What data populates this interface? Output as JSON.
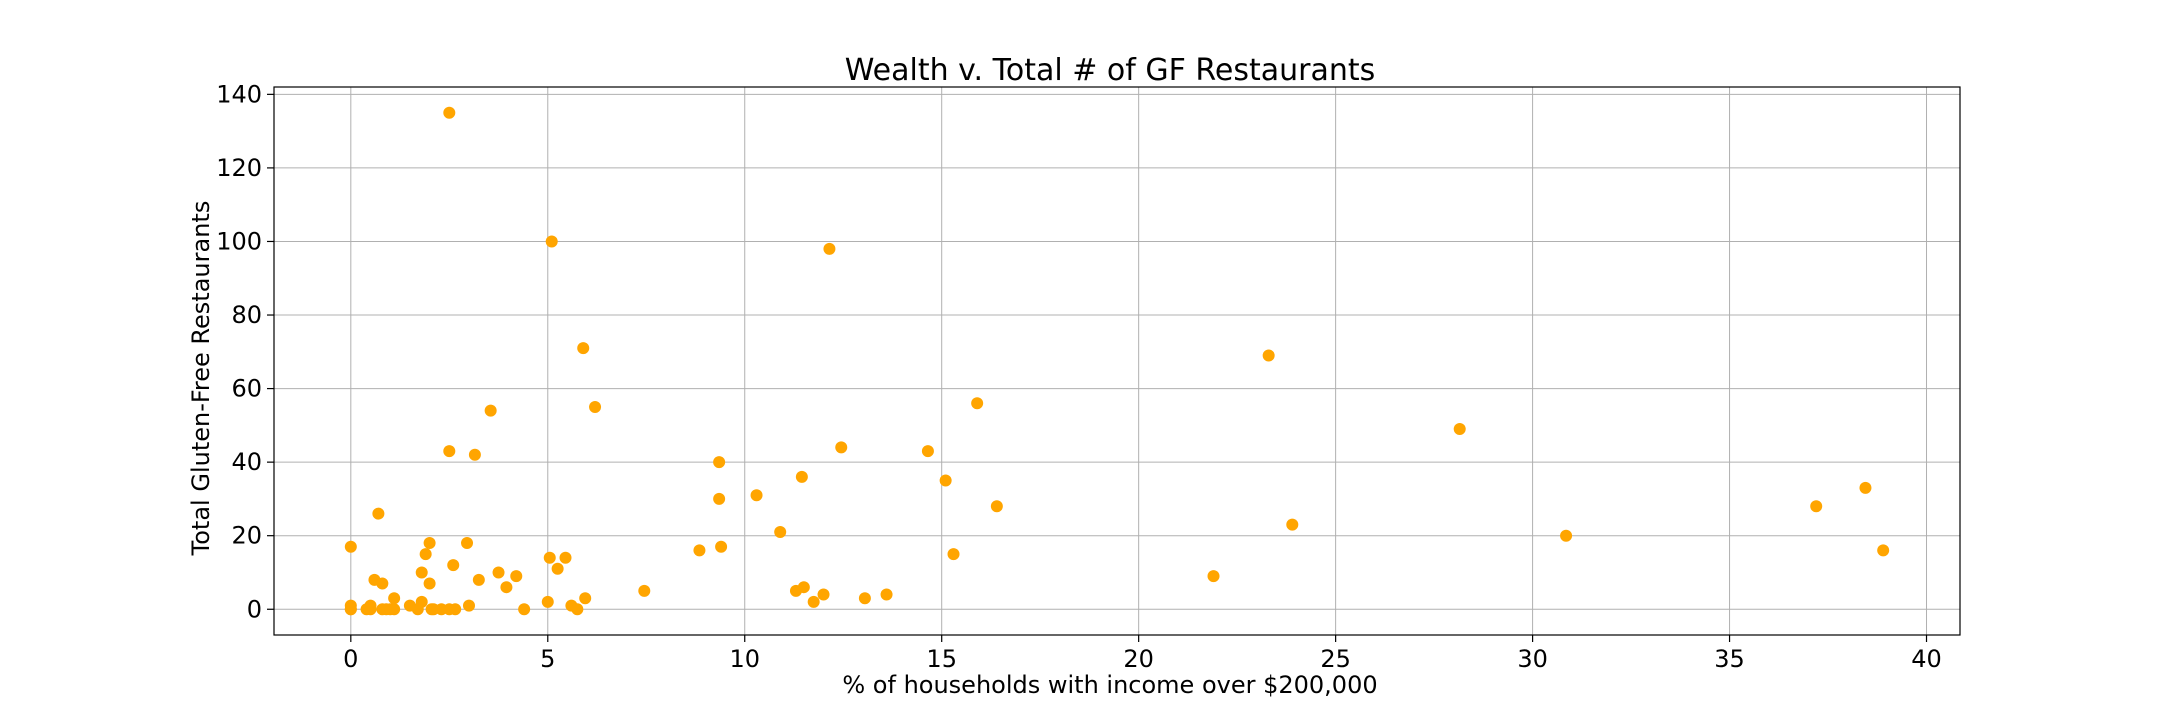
{
  "chart_data": {
    "type": "scatter",
    "title": "Wealth v. Total # of GF Restaurants",
    "xlabel": "% of households with income over $200,000",
    "ylabel": "Total Gluten-Free Restaurants",
    "xlim": [
      -1.95,
      40.85
    ],
    "ylim": [
      -7,
      142
    ],
    "xticks": [
      0,
      5,
      10,
      15,
      20,
      25,
      30,
      35,
      40
    ],
    "yticks": [
      0,
      20,
      40,
      60,
      80,
      100,
      120,
      140
    ],
    "grid": true,
    "marker_color": "#FFA500",
    "series": [
      {
        "x": [
          0.0,
          0.0,
          0.0,
          0.0,
          0.4,
          0.5,
          0.5,
          0.6,
          0.7,
          0.8,
          0.8,
          0.9,
          1.0,
          1.1,
          1.1,
          1.5,
          1.7,
          1.8,
          1.8,
          1.9,
          2.0,
          2.0,
          2.05,
          2.1,
          2.3,
          2.5,
          2.5,
          2.5,
          2.6,
          2.65,
          2.95,
          3.0,
          3.15,
          3.25,
          3.55,
          3.75,
          3.95,
          4.2,
          4.4,
          5.0,
          5.05,
          5.1,
          5.25,
          5.45,
          5.6,
          5.75,
          5.9,
          5.95,
          6.2,
          7.45,
          8.85,
          9.35,
          9.35,
          9.4,
          10.3,
          10.9,
          11.3,
          11.45,
          11.5,
          11.75,
          12.0,
          12.15,
          12.45,
          13.05,
          13.6,
          14.65,
          15.1,
          15.3,
          15.9,
          16.4,
          21.9,
          23.3,
          23.9,
          28.15,
          30.85,
          37.2,
          38.45,
          38.9
        ],
        "y": [
          17,
          1,
          0,
          0,
          0,
          1,
          0,
          8,
          26,
          7,
          0,
          0,
          0,
          0,
          3,
          1,
          0,
          2,
          10,
          15,
          7,
          18,
          0,
          0,
          0,
          135,
          43,
          0,
          12,
          0,
          18,
          1,
          42,
          8,
          54,
          10,
          6,
          9,
          0,
          2,
          14,
          100,
          11,
          14,
          1,
          0,
          71,
          3,
          55,
          5,
          16,
          40,
          30,
          17,
          31,
          21,
          5,
          36,
          6,
          2,
          4,
          98,
          44,
          3,
          4,
          43,
          35,
          15,
          56,
          28,
          9,
          69,
          23,
          49,
          20,
          28,
          33,
          16
        ]
      }
    ]
  }
}
